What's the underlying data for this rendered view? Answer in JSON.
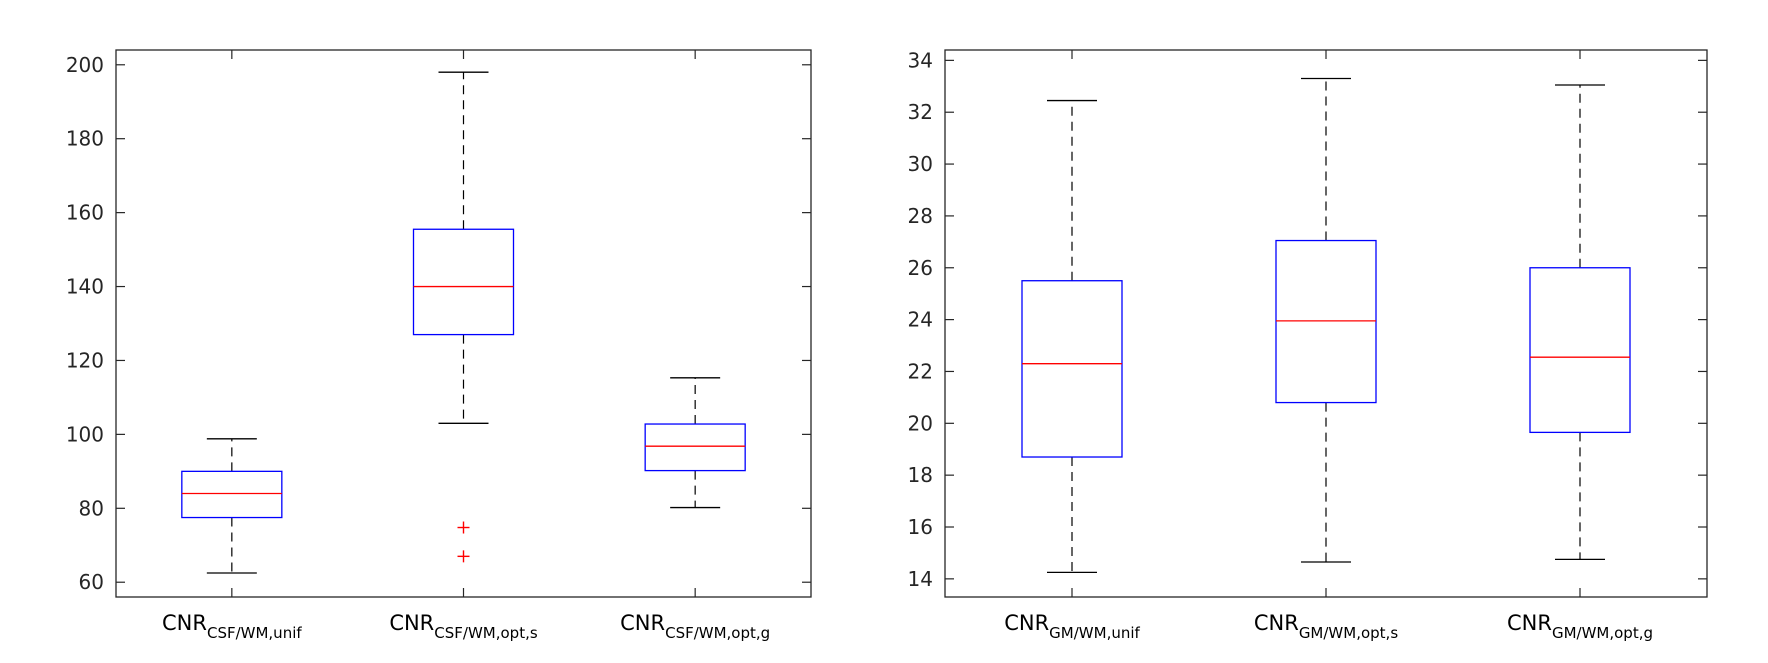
{
  "chart_data": [
    {
      "type": "box",
      "title": "",
      "xlabel": "",
      "ylabel": "",
      "ylim": [
        56,
        204
      ],
      "yticks": [
        60,
        80,
        100,
        120,
        140,
        160,
        180,
        200
      ],
      "categories": [
        {
          "main": "CNR",
          "sub": "CSF/WM,unif"
        },
        {
          "main": "CNR",
          "sub": "CSF/WM,opt,s"
        },
        {
          "main": "CNR",
          "sub": "CSF/WM,opt,g"
        }
      ],
      "boxes": [
        {
          "whisker_low": 62.5,
          "q1": 77.5,
          "median": 84.0,
          "q3": 90.0,
          "whisker_high": 98.8,
          "outliers": []
        },
        {
          "whisker_low": 103.0,
          "q1": 127.0,
          "median": 140.0,
          "q3": 155.5,
          "whisker_high": 198.0,
          "outliers": [
            74.8,
            67.0
          ]
        },
        {
          "whisker_low": 80.2,
          "q1": 90.2,
          "median": 96.8,
          "q3": 102.8,
          "whisker_high": 115.3,
          "outliers": []
        }
      ]
    },
    {
      "type": "box",
      "title": "",
      "xlabel": "",
      "ylabel": "",
      "ylim": [
        13.3,
        34.4
      ],
      "yticks": [
        14,
        16,
        18,
        20,
        22,
        24,
        26,
        28,
        30,
        32,
        34
      ],
      "categories": [
        {
          "main": "CNR",
          "sub": "GM/WM,unif"
        },
        {
          "main": "CNR",
          "sub": "GM/WM,opt,s"
        },
        {
          "main": "CNR",
          "sub": "GM/WM,opt,g"
        }
      ],
      "boxes": [
        {
          "whisker_low": 14.25,
          "q1": 18.7,
          "median": 22.3,
          "q3": 25.5,
          "whisker_high": 32.45,
          "outliers": []
        },
        {
          "whisker_low": 14.65,
          "q1": 20.8,
          "median": 23.95,
          "q3": 27.05,
          "whisker_high": 33.3,
          "outliers": []
        },
        {
          "whisker_low": 14.75,
          "q1": 19.65,
          "median": 22.55,
          "q3": 26.0,
          "whisker_high": 33.05,
          "outliers": []
        }
      ]
    }
  ],
  "colors": {
    "box": "#0000ff",
    "median": "#ff0000",
    "outlier": "#ff0000",
    "whisker": "#000000",
    "axes": "#262626"
  }
}
